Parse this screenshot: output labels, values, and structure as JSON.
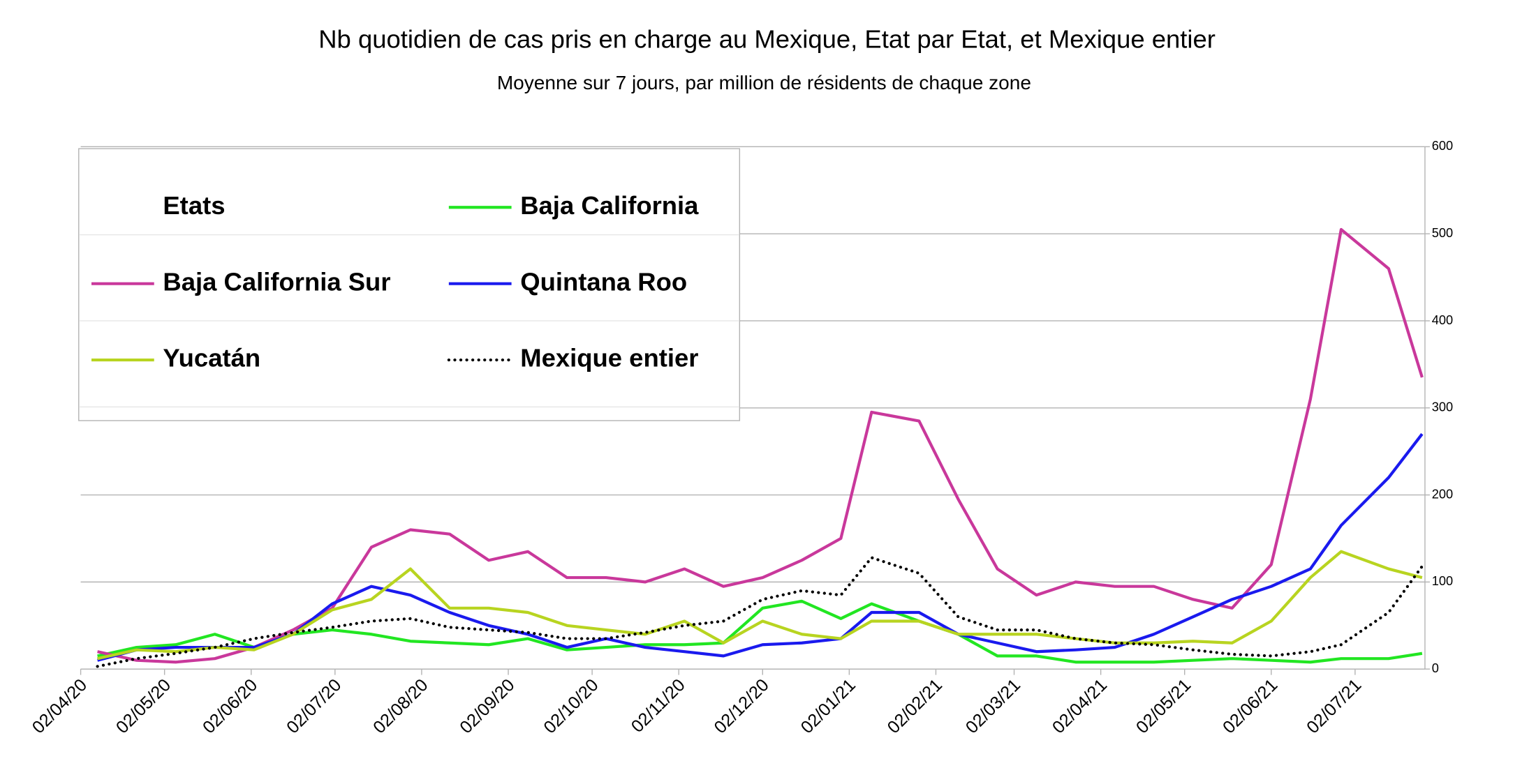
{
  "chart_data": {
    "type": "line",
    "title": "Nb quotidien de cas pris en charge au Mexique, Etat par Etat, et Mexique entier",
    "subtitle": "Moyenne sur 7 jours, par million de résidents de chaque zone",
    "legend_title": "Etats",
    "legend": "top-left",
    "grid": true,
    "x": [
      "2020-04-08",
      "2020-04-22",
      "2020-05-06",
      "2020-05-20",
      "2020-06-03",
      "2020-06-17",
      "2020-07-01",
      "2020-07-15",
      "2020-07-29",
      "2020-08-12",
      "2020-08-26",
      "2020-09-09",
      "2020-09-23",
      "2020-10-07",
      "2020-10-21",
      "2020-11-04",
      "2020-11-18",
      "2020-12-02",
      "2020-12-16",
      "2020-12-30",
      "2021-01-10",
      "2021-01-27",
      "2021-02-10",
      "2021-02-24",
      "2021-03-10",
      "2021-03-24",
      "2021-04-07",
      "2021-04-21",
      "2021-05-05",
      "2021-05-19",
      "2021-06-02",
      "2021-06-16",
      "2021-06-27",
      "2021-07-14",
      "2021-07-26"
    ],
    "xlim": [
      "2020-04-02",
      "2021-07-27"
    ],
    "xticks": [
      {
        "value": "2020-04-02",
        "label": "02/04/20"
      },
      {
        "value": "2020-05-02",
        "label": "02/05/20"
      },
      {
        "value": "2020-06-02",
        "label": "02/06/20"
      },
      {
        "value": "2020-07-02",
        "label": "02/07/20"
      },
      {
        "value": "2020-08-02",
        "label": "02/08/20"
      },
      {
        "value": "2020-09-02",
        "label": "02/09/20"
      },
      {
        "value": "2020-10-02",
        "label": "02/10/20"
      },
      {
        "value": "2020-11-02",
        "label": "02/11/20"
      },
      {
        "value": "2020-12-02",
        "label": "02/12/20"
      },
      {
        "value": "2021-01-02",
        "label": "02/01/21"
      },
      {
        "value": "2021-02-02",
        "label": "02/02/21"
      },
      {
        "value": "2021-03-02",
        "label": "02/03/21"
      },
      {
        "value": "2021-04-02",
        "label": "02/04/21"
      },
      {
        "value": "2021-05-02",
        "label": "02/05/21"
      },
      {
        "value": "2021-06-02",
        "label": "02/06/21"
      },
      {
        "value": "2021-07-02",
        "label": "02/07/21"
      }
    ],
    "ylim": [
      0,
      600
    ],
    "yticks": [
      0,
      100,
      200,
      300,
      400,
      500,
      600
    ],
    "series": [
      {
        "name": "Baja California",
        "color": "#22e622",
        "style": "solid",
        "values": [
          15,
          25,
          28,
          40,
          25,
          40,
          45,
          40,
          32,
          30,
          28,
          35,
          22,
          25,
          28,
          28,
          30,
          70,
          78,
          58,
          75,
          55,
          40,
          15,
          15,
          8,
          8,
          8,
          10,
          12,
          10,
          8,
          12,
          12,
          18
        ]
      },
      {
        "name": "Baja California Sur",
        "color": "#c9389b",
        "style": "solid",
        "values": [
          20,
          10,
          8,
          12,
          25,
          45,
          70,
          140,
          160,
          155,
          125,
          135,
          105,
          105,
          100,
          115,
          95,
          105,
          125,
          150,
          295,
          285,
          195,
          115,
          85,
          100,
          95,
          95,
          80,
          70,
          120,
          310,
          505,
          460,
          335
        ]
      },
      {
        "name": "Quintana Roo",
        "color": "#1a1aee",
        "style": "solid",
        "values": [
          10,
          22,
          25,
          25,
          25,
          40,
          75,
          95,
          85,
          65,
          50,
          40,
          25,
          35,
          25,
          20,
          15,
          28,
          30,
          35,
          65,
          65,
          40,
          30,
          20,
          22,
          25,
          40,
          60,
          80,
          95,
          115,
          165,
          220,
          270
        ]
      },
      {
        "name": "Yucatán",
        "color": "#b8d420",
        "style": "solid",
        "values": [
          12,
          22,
          20,
          25,
          22,
          40,
          68,
          80,
          115,
          70,
          70,
          65,
          50,
          45,
          40,
          55,
          30,
          55,
          40,
          35,
          55,
          55,
          40,
          40,
          40,
          35,
          30,
          30,
          32,
          30,
          55,
          105,
          135,
          115,
          105
        ]
      },
      {
        "name": "Mexique entier",
        "color": "#000000",
        "style": "dotted",
        "values": [
          3,
          12,
          18,
          25,
          35,
          42,
          48,
          55,
          58,
          48,
          45,
          42,
          35,
          35,
          42,
          50,
          55,
          80,
          90,
          85,
          128,
          110,
          60,
          45,
          45,
          35,
          30,
          28,
          22,
          17,
          15,
          20,
          28,
          65,
          118
        ]
      }
    ]
  }
}
